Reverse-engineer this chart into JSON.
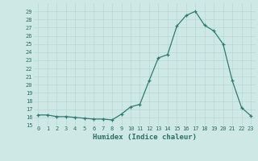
{
  "x": [
    0,
    1,
    2,
    3,
    4,
    5,
    6,
    7,
    8,
    9,
    10,
    11,
    12,
    13,
    14,
    15,
    16,
    17,
    18,
    19,
    20,
    21,
    22,
    23
  ],
  "y": [
    16.3,
    16.3,
    16.1,
    16.1,
    16.0,
    15.9,
    15.8,
    15.8,
    15.7,
    16.4,
    17.3,
    17.6,
    20.5,
    23.3,
    23.7,
    27.2,
    28.5,
    29.0,
    27.3,
    26.6,
    25.0,
    20.5,
    17.2,
    16.2
  ],
  "line_color": "#2e7d6e",
  "marker": "+",
  "marker_size": 3,
  "bg_color": "#cde8e5",
  "grid_color": "#b8d8d4",
  "xlabel": "Humidex (Indice chaleur)",
  "ylim": [
    15,
    30
  ],
  "yticks": [
    15,
    16,
    17,
    18,
    19,
    20,
    21,
    22,
    23,
    24,
    25,
    26,
    27,
    28,
    29
  ],
  "xticks": [
    0,
    1,
    2,
    3,
    4,
    5,
    6,
    7,
    8,
    9,
    10,
    11,
    12,
    13,
    14,
    15,
    16,
    17,
    18,
    19,
    20,
    21,
    22,
    23
  ],
  "xlim": [
    -0.5,
    23.5
  ],
  "tick_fontsize": 5,
  "xlabel_fontsize": 6.5,
  "axis_color": "#2e6e62",
  "linewidth": 0.9,
  "marker_edge_width": 0.9
}
